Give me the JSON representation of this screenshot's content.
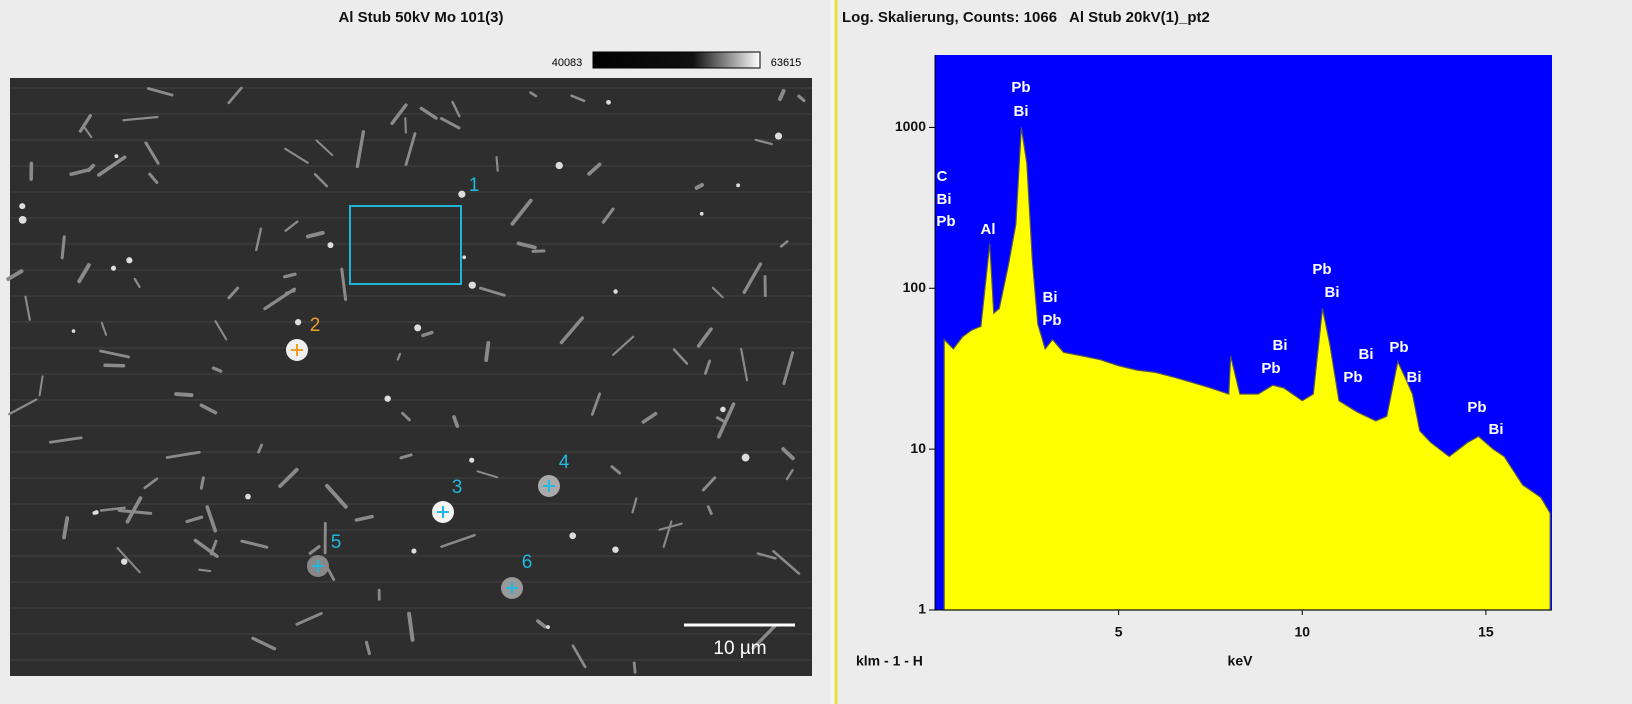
{
  "image_panel": {
    "title": "Al Stub 50kV Mo 101(3)",
    "colorbar_min": 40083,
    "colorbar_max": 63615,
    "markers": [
      "1",
      "2",
      "3",
      "4",
      "5",
      "6"
    ],
    "scale_bar": "10 µm"
  },
  "chart_data": {
    "type": "area",
    "title": "Log. Skalierung, Counts: 1066   Al Stub 20kV(1)_pt2",
    "x_label": "keV",
    "footer": "klm - 1 - H",
    "x": [
      0.25,
      0.5,
      0.75,
      1.0,
      1.25,
      1.49,
      1.6,
      1.75,
      2.0,
      2.2,
      2.35,
      2.5,
      2.65,
      2.8,
      3.0,
      3.2,
      3.5,
      4.0,
      4.5,
      5.0,
      5.5,
      6.0,
      6.5,
      7.0,
      7.5,
      8.0,
      8.05,
      8.3,
      8.8,
      9.2,
      9.5,
      10.0,
      10.3,
      10.55,
      10.75,
      11.0,
      11.5,
      12.0,
      12.3,
      12.6,
      12.8,
      13.0,
      13.2,
      13.5,
      14.0,
      14.5,
      14.8,
      15.2,
      15.5,
      16.0,
      16.5,
      16.75
    ],
    "values": [
      48,
      42,
      50,
      55,
      58,
      190,
      70,
      75,
      140,
      250,
      1000,
      600,
      150,
      60,
      42,
      48,
      40,
      38,
      36,
      33,
      31,
      30,
      28,
      26,
      24,
      22,
      38,
      22,
      22,
      25,
      24,
      20,
      22,
      75,
      45,
      20,
      17,
      15,
      16,
      35,
      28,
      22,
      13,
      11,
      9,
      11,
      12,
      10,
      9,
      6,
      5,
      4
    ],
    "color": "#ffff00",
    "background": "#0000ff",
    "log_y": true,
    "xlim": [
      0,
      16.8
    ],
    "ylim": [
      1,
      2820
    ],
    "xticks": [
      5,
      10,
      15
    ],
    "yticks": [
      1,
      10,
      100,
      1000
    ],
    "annotations": [
      "C",
      "Bi",
      "Pb",
      "Al",
      "Pb",
      "Bi",
      "Bi",
      "Pb",
      "Bi",
      "Pb",
      "Pb",
      "Bi",
      "Bi",
      "Pb",
      "Pb",
      "Bi",
      "Pb",
      "Bi"
    ]
  }
}
